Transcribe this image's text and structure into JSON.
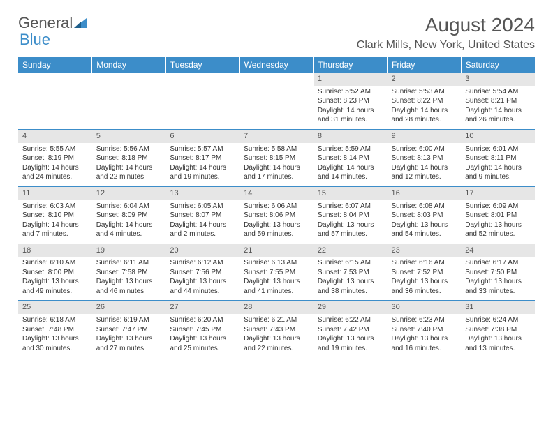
{
  "brand": {
    "word1": "General",
    "word2": "Blue"
  },
  "title": "August 2024",
  "location": "Clark Mills, New York, United States",
  "colors": {
    "header_bg": "#3c8dc9",
    "header_text": "#ffffff",
    "daynum_bg": "#e6e6e6",
    "rule": "#3c8dc9",
    "body_text": "#333333",
    "title_text": "#555555"
  },
  "grid": {
    "columns": 7,
    "col_headers": [
      "Sunday",
      "Monday",
      "Tuesday",
      "Wednesday",
      "Thursday",
      "Friday",
      "Saturday"
    ],
    "font_size_header_pt": 9,
    "font_size_body_pt": 7.5
  },
  "weeks": [
    [
      {
        "d": "",
        "sr": "",
        "ss": "",
        "dl": ""
      },
      {
        "d": "",
        "sr": "",
        "ss": "",
        "dl": ""
      },
      {
        "d": "",
        "sr": "",
        "ss": "",
        "dl": ""
      },
      {
        "d": "",
        "sr": "",
        "ss": "",
        "dl": ""
      },
      {
        "d": "1",
        "sr": "Sunrise: 5:52 AM",
        "ss": "Sunset: 8:23 PM",
        "dl": "Daylight: 14 hours and 31 minutes."
      },
      {
        "d": "2",
        "sr": "Sunrise: 5:53 AM",
        "ss": "Sunset: 8:22 PM",
        "dl": "Daylight: 14 hours and 28 minutes."
      },
      {
        "d": "3",
        "sr": "Sunrise: 5:54 AM",
        "ss": "Sunset: 8:21 PM",
        "dl": "Daylight: 14 hours and 26 minutes."
      }
    ],
    [
      {
        "d": "4",
        "sr": "Sunrise: 5:55 AM",
        "ss": "Sunset: 8:19 PM",
        "dl": "Daylight: 14 hours and 24 minutes."
      },
      {
        "d": "5",
        "sr": "Sunrise: 5:56 AM",
        "ss": "Sunset: 8:18 PM",
        "dl": "Daylight: 14 hours and 22 minutes."
      },
      {
        "d": "6",
        "sr": "Sunrise: 5:57 AM",
        "ss": "Sunset: 8:17 PM",
        "dl": "Daylight: 14 hours and 19 minutes."
      },
      {
        "d": "7",
        "sr": "Sunrise: 5:58 AM",
        "ss": "Sunset: 8:15 PM",
        "dl": "Daylight: 14 hours and 17 minutes."
      },
      {
        "d": "8",
        "sr": "Sunrise: 5:59 AM",
        "ss": "Sunset: 8:14 PM",
        "dl": "Daylight: 14 hours and 14 minutes."
      },
      {
        "d": "9",
        "sr": "Sunrise: 6:00 AM",
        "ss": "Sunset: 8:13 PM",
        "dl": "Daylight: 14 hours and 12 minutes."
      },
      {
        "d": "10",
        "sr": "Sunrise: 6:01 AM",
        "ss": "Sunset: 8:11 PM",
        "dl": "Daylight: 14 hours and 9 minutes."
      }
    ],
    [
      {
        "d": "11",
        "sr": "Sunrise: 6:03 AM",
        "ss": "Sunset: 8:10 PM",
        "dl": "Daylight: 14 hours and 7 minutes."
      },
      {
        "d": "12",
        "sr": "Sunrise: 6:04 AM",
        "ss": "Sunset: 8:09 PM",
        "dl": "Daylight: 14 hours and 4 minutes."
      },
      {
        "d": "13",
        "sr": "Sunrise: 6:05 AM",
        "ss": "Sunset: 8:07 PM",
        "dl": "Daylight: 14 hours and 2 minutes."
      },
      {
        "d": "14",
        "sr": "Sunrise: 6:06 AM",
        "ss": "Sunset: 8:06 PM",
        "dl": "Daylight: 13 hours and 59 minutes."
      },
      {
        "d": "15",
        "sr": "Sunrise: 6:07 AM",
        "ss": "Sunset: 8:04 PM",
        "dl": "Daylight: 13 hours and 57 minutes."
      },
      {
        "d": "16",
        "sr": "Sunrise: 6:08 AM",
        "ss": "Sunset: 8:03 PM",
        "dl": "Daylight: 13 hours and 54 minutes."
      },
      {
        "d": "17",
        "sr": "Sunrise: 6:09 AM",
        "ss": "Sunset: 8:01 PM",
        "dl": "Daylight: 13 hours and 52 minutes."
      }
    ],
    [
      {
        "d": "18",
        "sr": "Sunrise: 6:10 AM",
        "ss": "Sunset: 8:00 PM",
        "dl": "Daylight: 13 hours and 49 minutes."
      },
      {
        "d": "19",
        "sr": "Sunrise: 6:11 AM",
        "ss": "Sunset: 7:58 PM",
        "dl": "Daylight: 13 hours and 46 minutes."
      },
      {
        "d": "20",
        "sr": "Sunrise: 6:12 AM",
        "ss": "Sunset: 7:56 PM",
        "dl": "Daylight: 13 hours and 44 minutes."
      },
      {
        "d": "21",
        "sr": "Sunrise: 6:13 AM",
        "ss": "Sunset: 7:55 PM",
        "dl": "Daylight: 13 hours and 41 minutes."
      },
      {
        "d": "22",
        "sr": "Sunrise: 6:15 AM",
        "ss": "Sunset: 7:53 PM",
        "dl": "Daylight: 13 hours and 38 minutes."
      },
      {
        "d": "23",
        "sr": "Sunrise: 6:16 AM",
        "ss": "Sunset: 7:52 PM",
        "dl": "Daylight: 13 hours and 36 minutes."
      },
      {
        "d": "24",
        "sr": "Sunrise: 6:17 AM",
        "ss": "Sunset: 7:50 PM",
        "dl": "Daylight: 13 hours and 33 minutes."
      }
    ],
    [
      {
        "d": "25",
        "sr": "Sunrise: 6:18 AM",
        "ss": "Sunset: 7:48 PM",
        "dl": "Daylight: 13 hours and 30 minutes."
      },
      {
        "d": "26",
        "sr": "Sunrise: 6:19 AM",
        "ss": "Sunset: 7:47 PM",
        "dl": "Daylight: 13 hours and 27 minutes."
      },
      {
        "d": "27",
        "sr": "Sunrise: 6:20 AM",
        "ss": "Sunset: 7:45 PM",
        "dl": "Daylight: 13 hours and 25 minutes."
      },
      {
        "d": "28",
        "sr": "Sunrise: 6:21 AM",
        "ss": "Sunset: 7:43 PM",
        "dl": "Daylight: 13 hours and 22 minutes."
      },
      {
        "d": "29",
        "sr": "Sunrise: 6:22 AM",
        "ss": "Sunset: 7:42 PM",
        "dl": "Daylight: 13 hours and 19 minutes."
      },
      {
        "d": "30",
        "sr": "Sunrise: 6:23 AM",
        "ss": "Sunset: 7:40 PM",
        "dl": "Daylight: 13 hours and 16 minutes."
      },
      {
        "d": "31",
        "sr": "Sunrise: 6:24 AM",
        "ss": "Sunset: 7:38 PM",
        "dl": "Daylight: 13 hours and 13 minutes."
      }
    ]
  ]
}
